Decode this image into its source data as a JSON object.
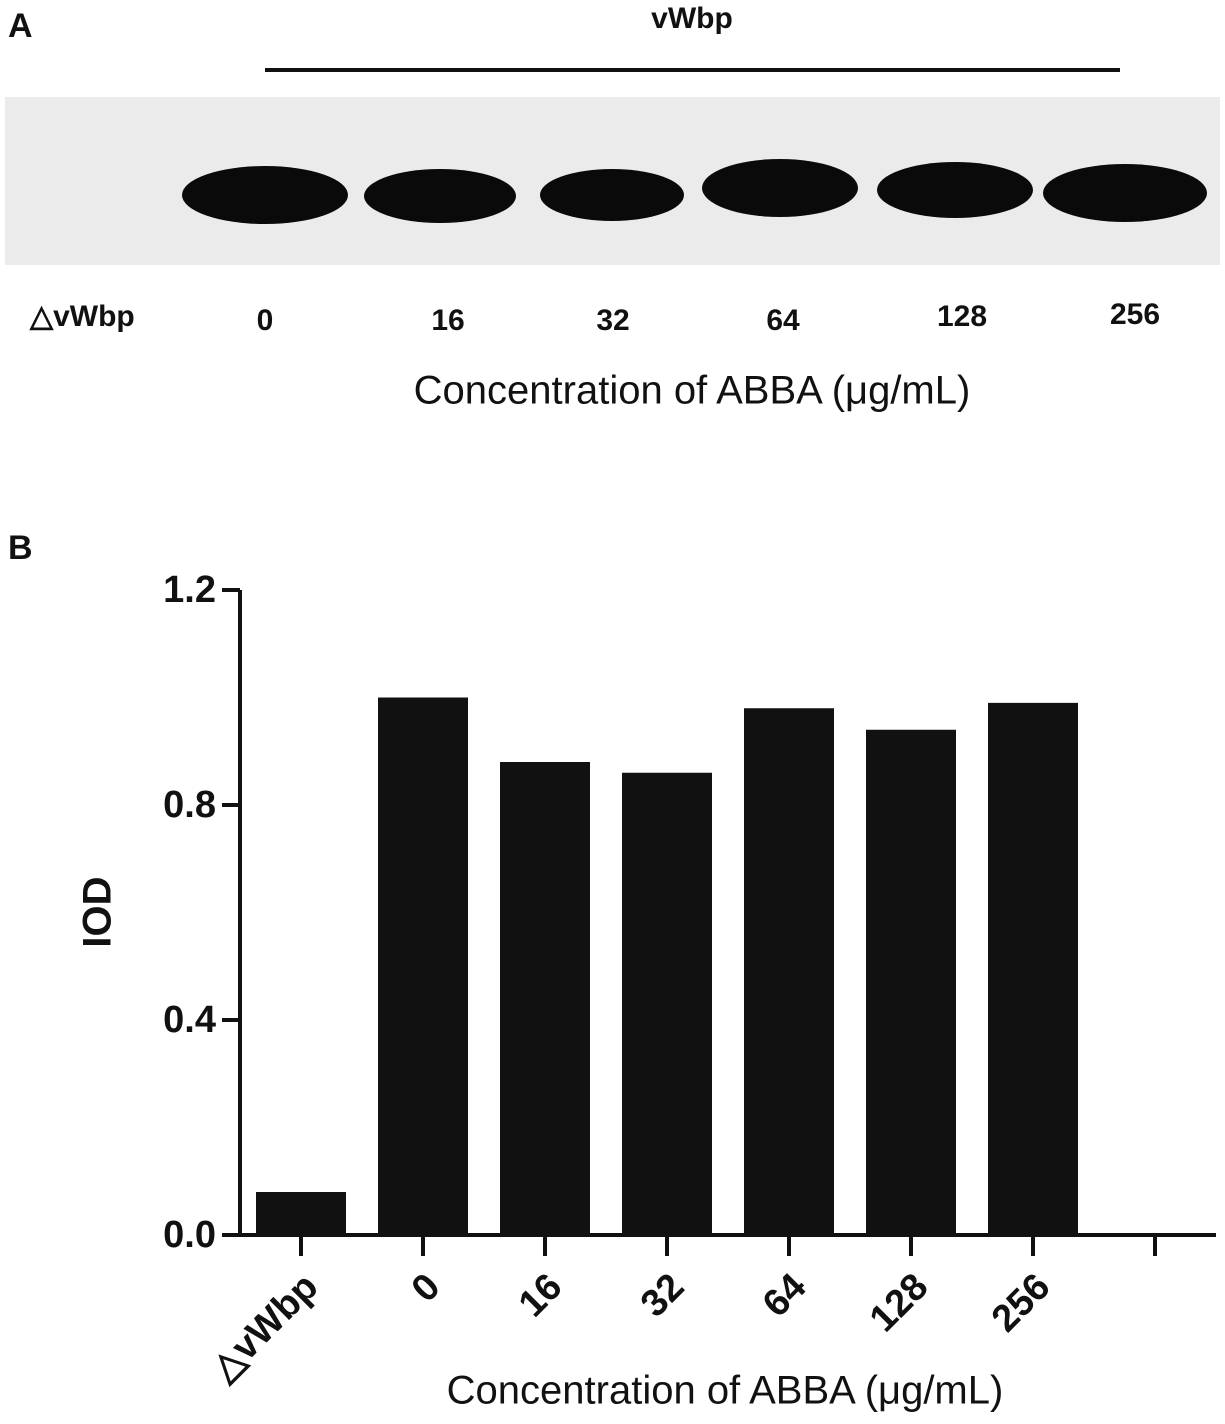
{
  "panel_a": {
    "panel_label": "A",
    "group_label": "vWbp",
    "lane_labels": [
      "△vWbp",
      "0",
      "16",
      "32",
      "64",
      "128",
      "256"
    ],
    "x_label": "Concentration of ABBA (μg/mL)"
  },
  "chart_data": {
    "type": "bar",
    "panel_label": "B",
    "y_label": "IOD",
    "x_label": "Concentration of ABBA (μg/mL)",
    "categories": [
      "△vWbp",
      "0",
      "16",
      "32",
      "64",
      "128",
      "256",
      null
    ],
    "values": [
      0.08,
      1.0,
      0.88,
      0.86,
      0.98,
      0.94,
      0.99,
      null
    ],
    "color": "#111111",
    "ylim": [
      0,
      1.2
    ],
    "yticks": [
      {
        "value": 0,
        "label": "0.0"
      },
      0.4,
      0.8,
      1.2
    ]
  }
}
